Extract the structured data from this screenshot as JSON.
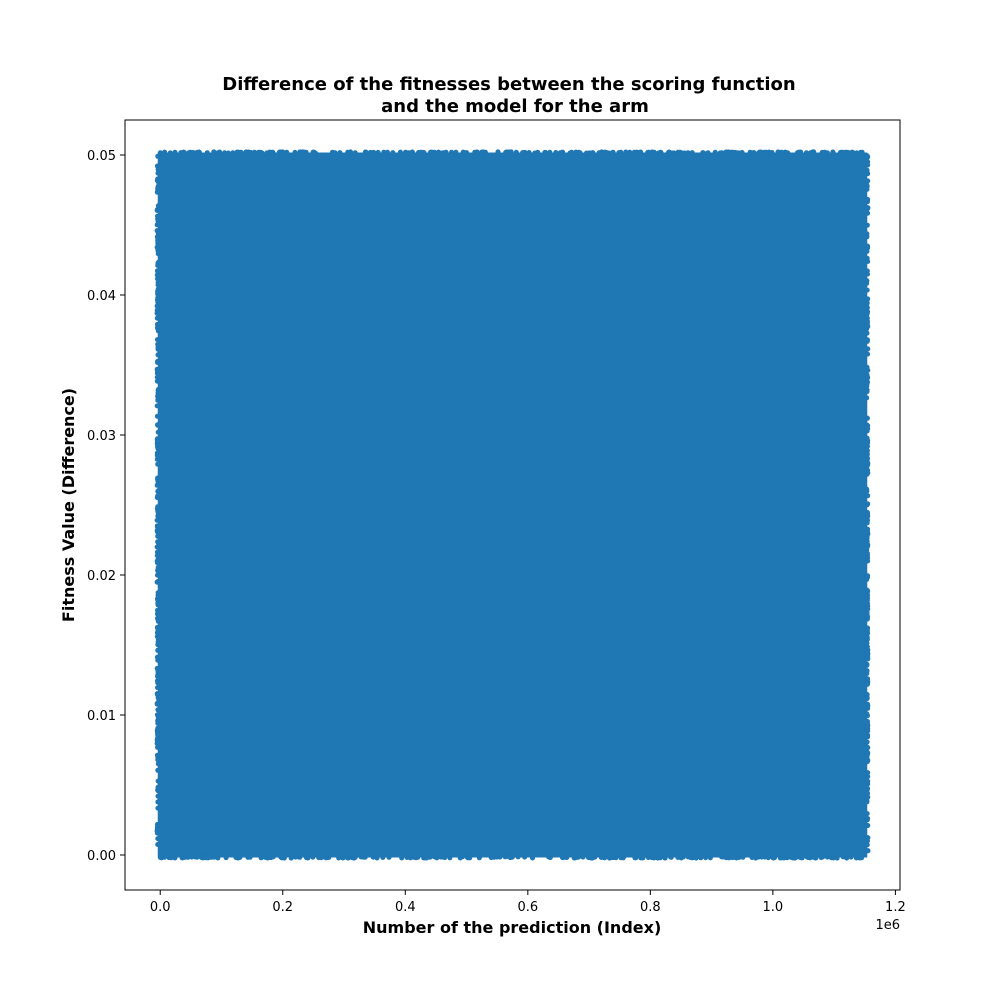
{
  "chart_data": {
    "type": "scatter",
    "title_lines": [
      "Difference of the fitnesses between the scoring function",
      "and the model for the arm"
    ],
    "xlabel": "Number of the prediction (Index)",
    "ylabel": "Fitness Value (Difference)",
    "x_offset_label": "1e6",
    "xlim": [
      -0.0575,
      1.2075
    ],
    "ylim": [
      -0.0025,
      0.0525
    ],
    "x_ticks": [
      0.0,
      0.2,
      0.4,
      0.6,
      0.8,
      1.0,
      1.2
    ],
    "x_tick_labels": [
      "0.0",
      "0.2",
      "0.4",
      "0.6",
      "0.8",
      "1.0",
      "1.2"
    ],
    "y_ticks": [
      0.0,
      0.01,
      0.02,
      0.03,
      0.04,
      0.05
    ],
    "y_tick_labels": [
      "0.00",
      "0.01",
      "0.02",
      "0.03",
      "0.04",
      "0.05"
    ],
    "series": [
      {
        "color": "#1f77b4",
        "x_range": [
          0.0,
          1.15
        ],
        "y_range": [
          0.0,
          0.05
        ],
        "distribution": "dense uniform fill"
      }
    ],
    "grid": false,
    "legend": "none"
  }
}
